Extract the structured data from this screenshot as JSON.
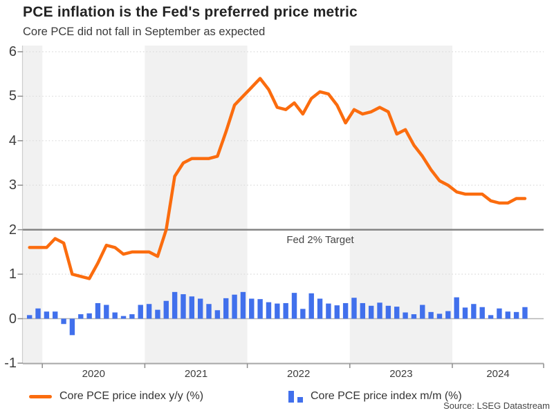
{
  "header": {
    "title": "PCE inflation is the Fed's preferred price metric",
    "subtitle": "Core PCE did not fall in September as expected"
  },
  "annotations": {
    "target_label": "Fed 2% Target"
  },
  "legend": [
    {
      "label": "Core PCE price index y/y (%)",
      "type": "line",
      "color": "#FB6C0E"
    },
    {
      "label": "Core PCE price index m/m (%)",
      "type": "bar",
      "color": "#4170EC"
    }
  ],
  "source": "Source: LSEG Datastream",
  "chart_data": {
    "type": "mixed",
    "title": "PCE inflation is the Fed's preferred price metric",
    "subtitle": "Core PCE did not fall in September as expected",
    "frequency": "monthly",
    "categories": [
      "2019-11",
      "2019-12",
      "2020-01",
      "2020-02",
      "2020-03",
      "2020-04",
      "2020-05",
      "2020-06",
      "2020-07",
      "2020-08",
      "2020-09",
      "2020-10",
      "2020-11",
      "2020-12",
      "2021-01",
      "2021-02",
      "2021-03",
      "2021-04",
      "2021-05",
      "2021-06",
      "2021-07",
      "2021-08",
      "2021-09",
      "2021-10",
      "2021-11",
      "2021-12",
      "2022-01",
      "2022-02",
      "2022-03",
      "2022-04",
      "2022-05",
      "2022-06",
      "2022-07",
      "2022-08",
      "2022-09",
      "2022-10",
      "2022-11",
      "2022-12",
      "2023-01",
      "2023-02",
      "2023-03",
      "2023-04",
      "2023-05",
      "2023-06",
      "2023-07",
      "2023-08",
      "2023-09",
      "2023-10",
      "2023-11",
      "2023-12",
      "2024-01",
      "2024-02",
      "2024-03",
      "2024-04",
      "2024-05",
      "2024-06",
      "2024-07",
      "2024-08",
      "2024-09"
    ],
    "series": [
      {
        "name": "Core PCE price index y/y (%)",
        "type": "line",
        "color": "#FB6C0E",
        "values": [
          1.6,
          1.6,
          1.6,
          1.8,
          1.7,
          1.0,
          0.95,
          0.9,
          1.25,
          1.65,
          1.6,
          1.45,
          1.5,
          1.5,
          1.5,
          1.4,
          2.0,
          3.2,
          3.5,
          3.6,
          3.6,
          3.6,
          3.65,
          4.2,
          4.8,
          5.0,
          5.2,
          5.4,
          5.15,
          4.75,
          4.7,
          4.85,
          4.6,
          4.95,
          5.1,
          5.05,
          4.8,
          4.4,
          4.7,
          4.6,
          4.65,
          4.75,
          4.65,
          4.15,
          4.25,
          3.9,
          3.65,
          3.35,
          3.1,
          3.0,
          2.85,
          2.8,
          2.8,
          2.8,
          2.65,
          2.6,
          2.6,
          2.7,
          2.7
        ]
      },
      {
        "name": "Core PCE price index m/m (%)",
        "type": "bar",
        "color": "#4170EC",
        "values": [
          0.08,
          0.23,
          0.16,
          0.16,
          -0.12,
          -0.37,
          0.1,
          0.12,
          0.35,
          0.31,
          0.14,
          0.06,
          0.1,
          0.31,
          0.33,
          0.2,
          0.4,
          0.6,
          0.55,
          0.5,
          0.45,
          0.33,
          0.19,
          0.46,
          0.54,
          0.6,
          0.45,
          0.44,
          0.37,
          0.34,
          0.35,
          0.58,
          0.22,
          0.57,
          0.45,
          0.34,
          0.3,
          0.35,
          0.47,
          0.35,
          0.29,
          0.36,
          0.29,
          0.27,
          0.14,
          0.1,
          0.31,
          0.15,
          0.11,
          0.17,
          0.48,
          0.25,
          0.33,
          0.26,
          0.08,
          0.23,
          0.16,
          0.15,
          0.26
        ]
      }
    ],
    "target_line": {
      "value": 2,
      "label": "Fed 2% Target",
      "color": "#7F7F7F"
    },
    "y_axis": {
      "min": -1,
      "max": 6,
      "ticks": [
        6,
        5,
        4,
        3,
        2,
        1,
        0,
        -1
      ]
    },
    "x_axis": {
      "tick_labels": [
        "2020",
        "2021",
        "2022",
        "2023",
        "2024"
      ],
      "tick_years": [
        2020,
        2021,
        2022,
        2023,
        2024
      ]
    },
    "layout": {
      "shaded_years": [
        2019,
        2021,
        2023
      ],
      "band_color": "#F1F1F1",
      "grid_color": "#DCDCDC",
      "grid_style": "dotted",
      "zero_line_color": "#B3B3B3",
      "axis_color": "#A6A6A6",
      "legend_position": "bottom"
    }
  }
}
